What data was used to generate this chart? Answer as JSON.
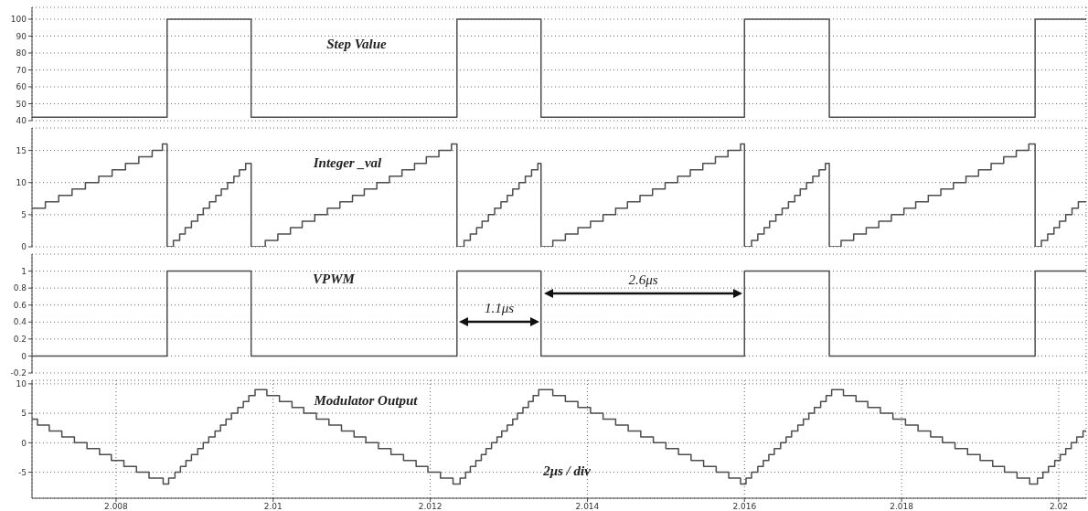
{
  "chart_data": [
    {
      "type": "step",
      "title": "Step Value",
      "color": "#4d4d4d",
      "grid": true,
      "tick_labels": "y",
      "xlim": [
        2.00693,
        2.02035
      ],
      "xticks": [
        2.008,
        2.01,
        2.012,
        2.014,
        2.016,
        2.018,
        2.02
      ],
      "ylim": [
        40,
        107
      ],
      "yticks": [
        40,
        50,
        60,
        70,
        80,
        90,
        100
      ],
      "x": [
        2.00693,
        2.00865,
        2.00972,
        2.01234,
        2.01341,
        2.016,
        2.01708,
        2.0197,
        2.02035
      ],
      "values": [
        42,
        100,
        42,
        100,
        42,
        100,
        42,
        100,
        100
      ]
    },
    {
      "type": "step",
      "title": "Integer _val",
      "color": "#4d4d4d",
      "grid": true,
      "tick_labels": "y",
      "xlim": [
        2.00693,
        2.02035
      ],
      "xticks": [
        2.008,
        2.01,
        2.012,
        2.014,
        2.016,
        2.018,
        2.02
      ],
      "ylim": [
        0,
        18.5
      ],
      "yticks": [
        0,
        5,
        10,
        15
      ],
      "x": [
        2.00693,
        2.0071,
        2.00727,
        2.00744,
        2.00761,
        2.00778,
        2.00795,
        2.00812,
        2.00829,
        2.00846,
        2.00859,
        2.00865,
        2.00873,
        2.00881,
        2.00888,
        2.00896,
        2.00904,
        2.00911,
        2.00919,
        2.00927,
        2.00934,
        2.00942,
        2.0095,
        2.00957,
        2.00965,
        2.00972,
        2.0099,
        2.01006,
        2.01022,
        2.01037,
        2.01053,
        2.01069,
        2.01085,
        2.01101,
        2.01116,
        2.01132,
        2.01148,
        2.01164,
        2.0118,
        2.01195,
        2.01211,
        2.01227,
        2.01234,
        2.01243,
        2.01251,
        2.01259,
        2.01266,
        2.01274,
        2.01282,
        2.0129,
        2.01298,
        2.01305,
        2.01313,
        2.01321,
        2.01329,
        2.01337,
        2.01341,
        2.01356,
        2.01372,
        2.01388,
        2.01404,
        2.0142,
        2.01436,
        2.01451,
        2.01467,
        2.01483,
        2.01499,
        2.01515,
        2.01531,
        2.01547,
        2.01563,
        2.01579,
        2.01595,
        2.016,
        2.01609,
        2.01617,
        2.01625,
        2.01632,
        2.0164,
        2.01648,
        2.01656,
        2.01664,
        2.01671,
        2.01679,
        2.01687,
        2.01695,
        2.01703,
        2.01708,
        2.01723,
        2.01739,
        2.01755,
        2.01771,
        2.01787,
        2.01803,
        2.01818,
        2.01834,
        2.0185,
        2.01866,
        2.01882,
        2.01898,
        2.01914,
        2.0193,
        2.01946,
        2.01962,
        2.0197,
        2.01978,
        2.01986,
        2.01994,
        2.02001,
        2.02009,
        2.02017,
        2.02025,
        2.02035
      ],
      "values": [
        6,
        7,
        8,
        9,
        10,
        11,
        12,
        13,
        14,
        15,
        16,
        0,
        1,
        2,
        3,
        4,
        5,
        6,
        7,
        8,
        9,
        10,
        11,
        12,
        13,
        0,
        1,
        2,
        3,
        4,
        5,
        6,
        7,
        8,
        9,
        10,
        11,
        12,
        13,
        14,
        15,
        16,
        0,
        1,
        2,
        3,
        4,
        5,
        6,
        7,
        8,
        9,
        10,
        11,
        12,
        13,
        0,
        1,
        2,
        3,
        4,
        5,
        6,
        7,
        8,
        9,
        10,
        11,
        12,
        13,
        14,
        15,
        16,
        0,
        1,
        2,
        3,
        4,
        5,
        6,
        7,
        8,
        9,
        10,
        11,
        12,
        13,
        0,
        1,
        2,
        3,
        4,
        5,
        6,
        7,
        8,
        9,
        10,
        11,
        12,
        13,
        14,
        15,
        16,
        0,
        1,
        2,
        3,
        4,
        5,
        6,
        7,
        7
      ]
    },
    {
      "type": "step",
      "title": "VPWM",
      "color": "#4d4d4d",
      "grid": true,
      "tick_labels": "y",
      "xlim": [
        2.00693,
        2.02035
      ],
      "xticks": [
        2.008,
        2.01,
        2.012,
        2.014,
        2.016,
        2.018,
        2.02
      ],
      "ylim": [
        -0.2,
        1.2
      ],
      "yticks": [
        -0.2,
        0,
        0.2,
        0.4,
        0.6,
        0.8,
        1
      ],
      "x": [
        2.00693,
        2.00865,
        2.00972,
        2.01234,
        2.01341,
        2.016,
        2.01708,
        2.0197,
        2.02035
      ],
      "values": [
        0,
        1,
        0,
        1,
        0,
        1,
        0,
        1,
        1
      ],
      "annotations": [
        "1.1μs",
        "2.6μs"
      ]
    },
    {
      "type": "step",
      "title": "Modulator Output",
      "color": "#4d4d4d",
      "grid": true,
      "xlim": [
        2.00693,
        2.02035
      ],
      "xticks": [
        2.008,
        2.01,
        2.012,
        2.014,
        2.016,
        2.018,
        2.02
      ],
      "ylim": [
        -9.4,
        10.6
      ],
      "yticks": [
        -5,
        0,
        5,
        10
      ],
      "x": [
        2.00693,
        2.007,
        2.00715,
        2.00731,
        2.00747,
        2.00763,
        2.00779,
        2.00794,
        2.0081,
        2.00826,
        2.00842,
        2.0086,
        2.00867,
        2.00875,
        2.00882,
        2.00889,
        2.00896,
        2.00904,
        2.00911,
        2.00918,
        2.00926,
        2.00933,
        2.0094,
        2.00947,
        2.00955,
        2.00962,
        2.00969,
        2.00977,
        2.00992,
        2.01008,
        2.01024,
        2.01039,
        2.01055,
        2.01071,
        2.01087,
        2.01103,
        2.01118,
        2.01134,
        2.0115,
        2.01166,
        2.01182,
        2.01197,
        2.01213,
        2.01229,
        2.01238,
        2.01245,
        2.01251,
        2.01258,
        2.01265,
        2.01271,
        2.01278,
        2.01285,
        2.01291,
        2.01298,
        2.01305,
        2.01311,
        2.01318,
        2.01325,
        2.01331,
        2.01338,
        2.01356,
        2.01372,
        2.01388,
        2.01404,
        2.0142,
        2.01436,
        2.01452,
        2.01468,
        2.01484,
        2.015,
        2.01516,
        2.01532,
        2.01548,
        2.01564,
        2.0158,
        2.01595,
        2.01602,
        2.01609,
        2.01617,
        2.01624,
        2.01631,
        2.01638,
        2.01646,
        2.01653,
        2.0166,
        2.01668,
        2.01675,
        2.01682,
        2.01689,
        2.01697,
        2.01704,
        2.01711,
        2.01726,
        2.01742,
        2.01757,
        2.01773,
        2.01789,
        2.01805,
        2.01821,
        2.01837,
        2.01852,
        2.01868,
        2.01884,
        2.019,
        2.01916,
        2.01931,
        2.01947,
        2.01963,
        2.01973,
        2.0198,
        2.01987,
        2.01995,
        2.02002,
        2.02009,
        2.02016,
        2.02023,
        2.02031,
        2.02035
      ],
      "values": [
        4,
        3,
        2,
        1,
        0,
        -1,
        -2,
        -3,
        -4,
        -5,
        -6,
        -7,
        -6,
        -5,
        -4,
        -3,
        -2,
        -1,
        0,
        1,
        2,
        3,
        4,
        5,
        6,
        7,
        8,
        9,
        8,
        7,
        6,
        5,
        4,
        3,
        2,
        1,
        0,
        -1,
        -2,
        -3,
        -4,
        -5,
        -6,
        -7,
        -6,
        -5,
        -4,
        -3,
        -2,
        -1,
        0,
        1,
        2,
        3,
        4,
        5,
        6,
        7,
        8,
        9,
        8,
        7,
        6,
        5,
        4,
        3,
        2,
        1,
        0,
        -1,
        -2,
        -3,
        -4,
        -5,
        -6,
        -7,
        -6,
        -5,
        -4,
        -3,
        -2,
        -1,
        0,
        1,
        2,
        3,
        4,
        5,
        6,
        7,
        8,
        9,
        8,
        7,
        6,
        5,
        4,
        3,
        2,
        1,
        0,
        -1,
        -2,
        -3,
        -4,
        -5,
        -6,
        -7,
        -6,
        -5,
        -4,
        -3,
        -2,
        -1,
        0,
        1,
        2,
        2
      ],
      "annotations": [
        "2μs / div"
      ]
    }
  ]
}
